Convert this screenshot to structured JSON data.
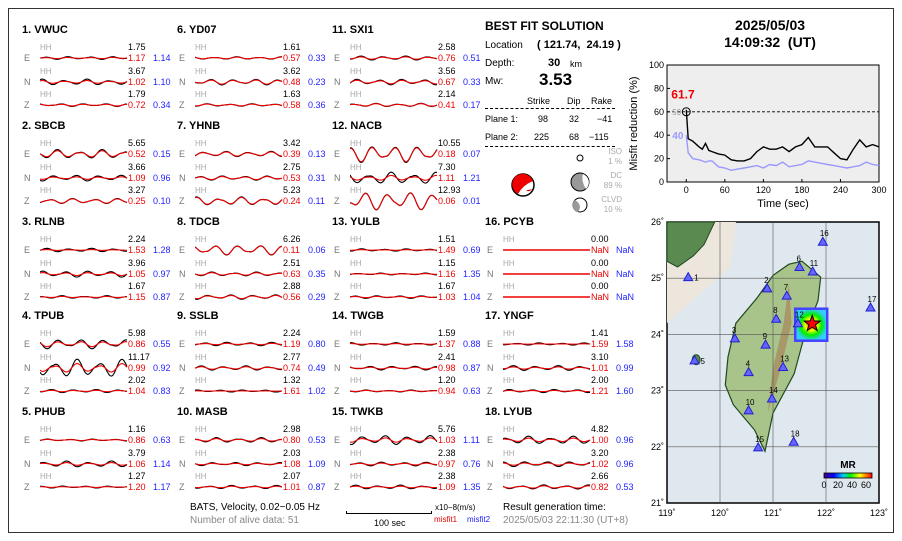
{
  "stations": [
    {
      "name": "1.  VWUC",
      "comps": [
        [
          "E",
          "HH",
          "1.75",
          "1.17",
          "1.14"
        ],
        [
          "N",
          "HH",
          "3.67",
          "1.02",
          "1.10"
        ],
        [
          "Z",
          "HH",
          "1.79",
          "0.72",
          "0.34"
        ]
      ]
    },
    {
      "name": "2.  SBCB",
      "comps": [
        [
          "E",
          "HH",
          "5.65",
          "0.52",
          "0.15"
        ],
        [
          "N",
          "HH",
          "3.66",
          "1.09",
          "0.96"
        ],
        [
          "Z",
          "HH",
          "3.27",
          "0.25",
          "0.10"
        ]
      ]
    },
    {
      "name": "3.  RLNB",
      "comps": [
        [
          "E",
          "HH",
          "2.24",
          "1.53",
          "1.28"
        ],
        [
          "N",
          "HH",
          "3.96",
          "1.05",
          "0.97"
        ],
        [
          "Z",
          "HH",
          "1.67",
          "1.15",
          "0.87"
        ]
      ]
    },
    {
      "name": "4.  TPUB",
      "comps": [
        [
          "E",
          "HH",
          "5.98",
          "0.86",
          "0.55"
        ],
        [
          "N",
          "HH",
          "11.17",
          "0.99",
          "0.92"
        ],
        [
          "Z",
          "HH",
          "2.02",
          "1.04",
          "0.83"
        ]
      ]
    },
    {
      "name": "5.  PHUB",
      "comps": [
        [
          "E",
          "HH",
          "1.16",
          "0.86",
          "0.63"
        ],
        [
          "N",
          "HH",
          "3.79",
          "1.06",
          "1.14"
        ],
        [
          "Z",
          "HH",
          "1.27",
          "1.20",
          "1.17"
        ]
      ]
    },
    {
      "name": "6.  YD07",
      "comps": [
        [
          "E",
          "HH",
          "1.61",
          "0.57",
          "0.33"
        ],
        [
          "N",
          "HH",
          "3.62",
          "0.48",
          "0.23"
        ],
        [
          "Z",
          "HH",
          "1.63",
          "0.58",
          "0.36"
        ]
      ]
    },
    {
      "name": "7.  YHNB",
      "comps": [
        [
          "E",
          "HH",
          "3.42",
          "0.39",
          "0.13"
        ],
        [
          "N",
          "HH",
          "2.75",
          "0.53",
          "0.31"
        ],
        [
          "Z",
          "HH",
          "5.23",
          "0.24",
          "0.11"
        ]
      ]
    },
    {
      "name": "8.  TDCB",
      "comps": [
        [
          "E",
          "HH",
          "6.26",
          "0.11",
          "0.06"
        ],
        [
          "N",
          "HH",
          "2.51",
          "0.63",
          "0.35"
        ],
        [
          "Z",
          "HH",
          "2.88",
          "0.56",
          "0.29"
        ]
      ]
    },
    {
      "name": "9.  SSLB",
      "comps": [
        [
          "E",
          "HH",
          "2.24",
          "1.19",
          "0.80"
        ],
        [
          "N",
          "HH",
          "2.77",
          "0.74",
          "0.49"
        ],
        [
          "Z",
          "HH",
          "1.32",
          "1.61",
          "1.02"
        ]
      ]
    },
    {
      "name": "10. MASB",
      "comps": [
        [
          "E",
          "HH",
          "2.98",
          "0.80",
          "0.53"
        ],
        [
          "N",
          "HH",
          "2.03",
          "1.08",
          "1.09"
        ],
        [
          "Z",
          "HH",
          "2.07",
          "1.01",
          "0.87"
        ]
      ]
    },
    {
      "name": "11. SXI1",
      "comps": [
        [
          "E",
          "HH",
          "2.58",
          "0.76",
          "0.51"
        ],
        [
          "N",
          "HH",
          "3.56",
          "0.67",
          "0.33"
        ],
        [
          "Z",
          "HH",
          "2.14",
          "0.41",
          "0.17"
        ]
      ]
    },
    {
      "name": "12. NACB",
      "comps": [
        [
          "E",
          "HH",
          "10.55",
          "0.18",
          "0.07"
        ],
        [
          "N",
          "HH",
          "7.30",
          "1.11",
          "1.21"
        ],
        [
          "Z",
          "HH",
          "12.93",
          "0.06",
          "0.01"
        ]
      ]
    },
    {
      "name": "13. YULB",
      "comps": [
        [
          "E",
          "HH",
          "1.51",
          "1.49",
          "0.69"
        ],
        [
          "N",
          "HH",
          "1.15",
          "1.16",
          "1.35"
        ],
        [
          "Z",
          "HH",
          "1.67",
          "1.03",
          "1.04"
        ]
      ]
    },
    {
      "name": "14. TWGB",
      "comps": [
        [
          "E",
          "HH",
          "1.59",
          "1.37",
          "0.88"
        ],
        [
          "N",
          "HH",
          "2.41",
          "0.98",
          "0.87"
        ],
        [
          "Z",
          "HH",
          "1.20",
          "0.94",
          "0.63"
        ]
      ]
    },
    {
      "name": "15. TWKB",
      "comps": [
        [
          "E",
          "HH",
          "5.76",
          "1.03",
          "1.11"
        ],
        [
          "N",
          "HH",
          "2.38",
          "0.97",
          "0.76"
        ],
        [
          "Z",
          "HH",
          "2.38",
          "1.09",
          "1.35"
        ]
      ]
    },
    {
      "name": "16. PCYB",
      "comps": [
        [
          "E",
          "HH",
          "0.00",
          "NaN",
          "NaN"
        ],
        [
          "N",
          "HH",
          "0.00",
          "NaN",
          "NaN"
        ],
        [
          "Z",
          "HH",
          "0.00",
          "NaN",
          "NaN"
        ]
      ]
    },
    {
      "name": "17. YNGF",
      "comps": [
        [
          "E",
          "HH",
          "1.41",
          "1.59",
          "1.58"
        ],
        [
          "N",
          "HH",
          "3.10",
          "1.01",
          "0.99"
        ],
        [
          "Z",
          "HH",
          "2.00",
          "1.21",
          "1.60"
        ]
      ]
    },
    {
      "name": "18. LYUB",
      "comps": [
        [
          "E",
          "HH",
          "4.82",
          "1.00",
          "0.96"
        ],
        [
          "N",
          "HH",
          "3.20",
          "1.02",
          "0.96"
        ],
        [
          "Z",
          "HH",
          "2.66",
          "0.82",
          "0.53"
        ]
      ]
    }
  ],
  "solution": {
    "title": "BEST FIT SOLUTION",
    "location_label": "Location",
    "location": "( 121.74,  24.19 )",
    "depth_label": "Depth:",
    "depth": "30",
    "depth_unit": "km",
    "mw_label": "Mw:",
    "mw": "3.53",
    "headers": [
      "Strike",
      "Dip",
      "Rake"
    ],
    "plane1": [
      "Plane 1:",
      "98",
      "32",
      "−41"
    ],
    "plane2": [
      "Plane 2:",
      "225",
      "68",
      "−115"
    ],
    "iso": [
      "ISO",
      "1  %"
    ],
    "dc": [
      "DC",
      "89 %"
    ],
    "clvd": [
      "CLVD",
      "10 %"
    ]
  },
  "footer": {
    "filter": "BATS, Velocity, 0.02−0.05 Hz",
    "alive": "Number of alive data: 51",
    "scale": "100 sec",
    "units": "x10−8(m/s)",
    "misfit1": "misfit1",
    "misfit2": "misfit2",
    "gen_label": "Result generation time:",
    "gen_time": "2025/05/03 22:11:30 (UT+8)"
  },
  "header": {
    "date": "2025/05/03",
    "time": "14:09:32  (UT)"
  },
  "colors": {
    "observed": "#000000",
    "synthetic": "#ee0000",
    "misfit1": "#ee0000",
    "misfit2": "#2222ff",
    "purple": "#9999ff"
  },
  "chart_data": [
    {
      "type": "line",
      "xlabel": "Time (sec)",
      "ylabel": "Misfit reduction (%)",
      "xlim": [
        -30,
        300
      ],
      "ylim": [
        0,
        100
      ],
      "xticks": [
        0,
        60,
        120,
        180,
        240,
        300
      ],
      "yticks": [
        0,
        20,
        40,
        60,
        80,
        100
      ],
      "reference_line": 60,
      "annotations": {
        "best": "61.7",
        "purple_start": "40",
        "gray": "59"
      },
      "x": [
        0,
        3,
        10,
        20,
        25,
        30,
        35,
        40,
        50,
        60,
        70,
        80,
        90,
        100,
        110,
        120,
        130,
        140,
        150,
        160,
        170,
        180,
        190,
        200,
        210,
        220,
        230,
        240,
        250,
        260,
        270,
        280,
        290,
        300
      ],
      "series": [
        {
          "color": "#000000",
          "values": [
            61.7,
            37,
            35,
            30,
            28,
            33,
            27,
            26,
            24,
            23,
            19,
            18,
            18,
            20,
            26,
            30,
            28,
            28,
            30,
            26,
            30,
            32,
            38,
            30,
            30,
            30,
            25,
            20,
            19,
            28,
            36,
            30,
            32,
            30
          ]
        },
        {
          "color": "#9999ff",
          "values": [
            40,
            25,
            20,
            19,
            18,
            17,
            18,
            18,
            13,
            12,
            10,
            11,
            12,
            13,
            14,
            12,
            15,
            14,
            17,
            13,
            14,
            15,
            18,
            17,
            16,
            15,
            14,
            13,
            12,
            13,
            14,
            17,
            15,
            14
          ]
        }
      ]
    },
    {
      "type": "scatter",
      "xticks": [
        "119˚",
        "120˚",
        "121˚",
        "122˚",
        "123˚"
      ],
      "yticks": [
        "26˚",
        "25˚",
        "24˚",
        "23˚",
        "22˚",
        "21˚"
      ],
      "xlim": [
        119,
        123
      ],
      "ylim": [
        21,
        26
      ],
      "colorbar": {
        "label": "MR",
        "ticks": [
          "0",
          "20",
          "40",
          "60"
        ]
      },
      "epicenter": [
        121.74,
        24.19
      ],
      "stations": [
        [
          "1",
          119.4,
          25.01
        ],
        [
          "2",
          120.89,
          24.81
        ],
        [
          "3",
          120.28,
          23.92
        ],
        [
          "4",
          120.54,
          23.32
        ],
        [
          "5",
          119.52,
          23.53
        ],
        [
          "6",
          121.5,
          25.19
        ],
        [
          "7",
          121.26,
          24.68
        ],
        [
          "8",
          121.06,
          24.27
        ],
        [
          "9",
          120.86,
          23.81
        ],
        [
          "10",
          120.54,
          22.64
        ],
        [
          "11",
          121.75,
          25.11
        ],
        [
          "12",
          121.47,
          24.19
        ],
        [
          "13",
          121.19,
          23.41
        ],
        [
          "14",
          120.98,
          22.85
        ],
        [
          "15",
          120.72,
          21.98
        ],
        [
          "16",
          121.94,
          25.64
        ],
        [
          "17",
          122.84,
          24.47
        ],
        [
          "18",
          121.39,
          22.08
        ]
      ]
    }
  ]
}
